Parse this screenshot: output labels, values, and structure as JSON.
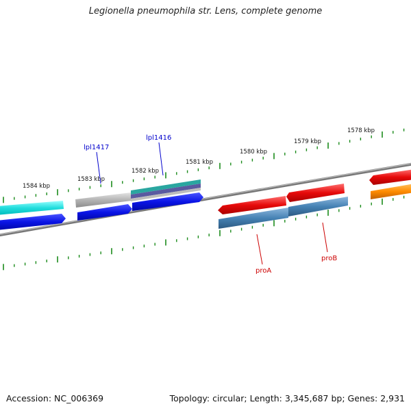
{
  "title": "Legionella pneumophila str. Lens, complete genome",
  "footer": {
    "accession": "Accession: NC_006369",
    "summary": "Topology: circular; Length: 3,345,687 bp; Genes: 2,931"
  },
  "scale_labels": [
    "1584 kbp",
    "1583 kbp",
    "1582 kbp",
    "1581 kbp",
    "1580 kbp",
    "1579 kbp",
    "1578 kbp"
  ],
  "gene_labels": [
    {
      "text": "lpl1417",
      "color": "#0000cc"
    },
    {
      "text": "lpl1416",
      "color": "#0000cc"
    },
    {
      "text": "proA",
      "color": "#cc0000"
    },
    {
      "text": "proB",
      "color": "#cc0000"
    }
  ],
  "colors": {
    "backbone": "#888888",
    "ticks": "#1a8a1a",
    "cyan": "#22dddd",
    "blue": "#0a14e6",
    "gray": "#b4b4b4",
    "teal": "#2aa6a0",
    "purple": "#5a5aa0",
    "red": "#e60a0a",
    "steelblue": "#4682b4",
    "orange": "#ff8c00"
  }
}
